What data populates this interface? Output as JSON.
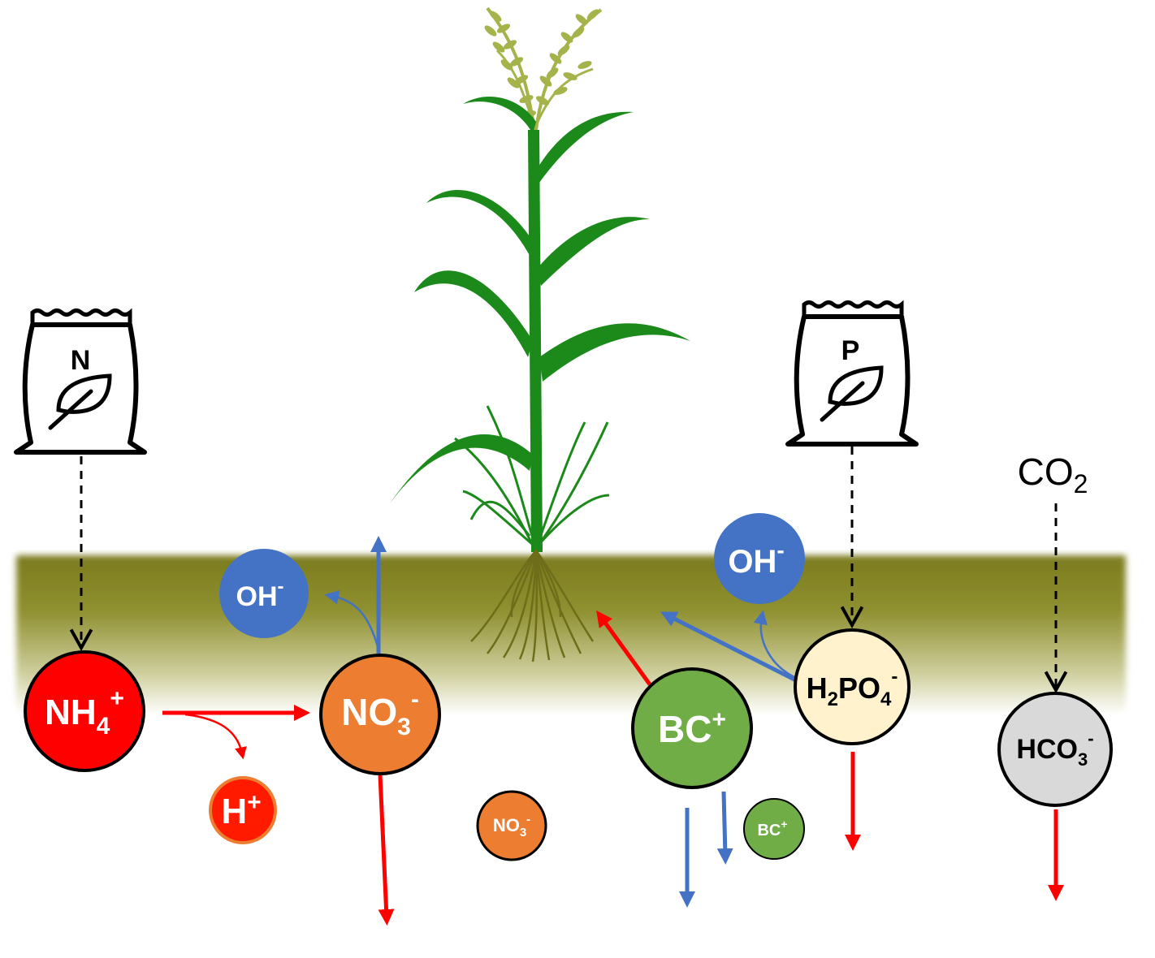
{
  "colors": {
    "soil_top": "#7b7b1e",
    "soil_bottom": "#ffffff",
    "nh4": "#ff0000",
    "h_plus": "#ff1a00",
    "no3": "#ed7d31",
    "oh": "#4472c4",
    "bc": "#70ad47",
    "h2po4": "#fff2cc",
    "hco3": "#d9d9d9",
    "red_arrow": "#ff0000",
    "blue_arrow": "#4472c4",
    "plant": "#1b8a1b",
    "tassel": "#a5b34a",
    "roots": "#6e6e1a"
  },
  "fertilizers": {
    "nitrogen": {
      "letter": "N",
      "icon": "leaf-icon"
    },
    "phosphorus": {
      "letter": "P",
      "icon": "leaf-icon"
    }
  },
  "ions": {
    "nh4": {
      "base": "NH",
      "sub": "4",
      "sup": "+"
    },
    "h_plus": {
      "base": "H",
      "sup": "+"
    },
    "no3_main": {
      "base": "NO",
      "sub": "3",
      "sup": "-"
    },
    "no3_small": {
      "base": "NO",
      "sub": "3",
      "sup": "-"
    },
    "oh_left": {
      "base": "OH",
      "sup": "-"
    },
    "oh_right": {
      "base": "OH",
      "sup": "-"
    },
    "bc_main": {
      "base": "BC",
      "sup": "+"
    },
    "bc_small": {
      "base": "BC",
      "sup": "+"
    },
    "h2po4": {
      "base1": "H",
      "sub1": "2",
      "base2": "PO",
      "sub2": "4",
      "sup": "-"
    },
    "hco3": {
      "base": "HCO",
      "sub": "3",
      "sup": "-"
    }
  },
  "co2": {
    "base": "CO",
    "sub": "2"
  }
}
